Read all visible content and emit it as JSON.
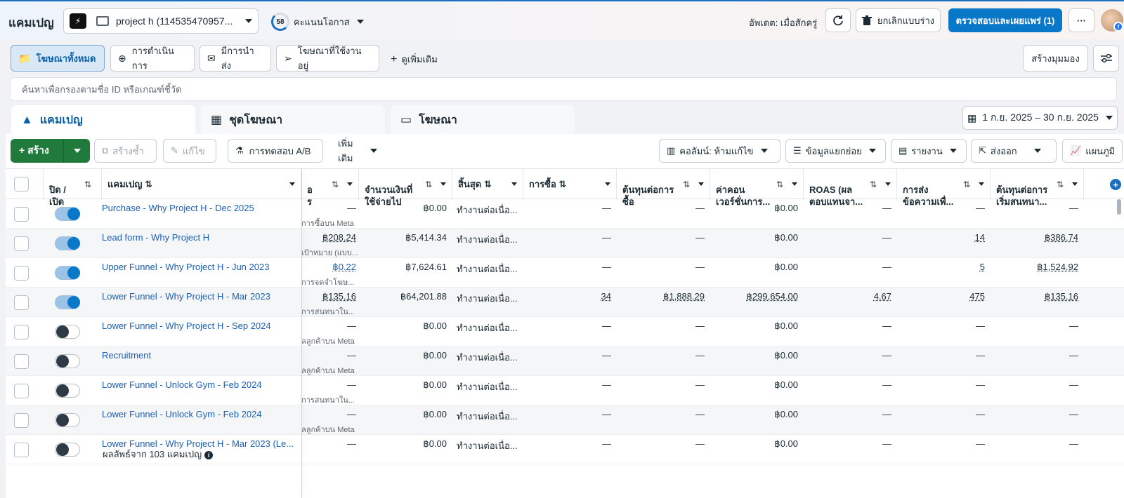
{
  "header": {
    "title": "แคมเปญ",
    "account_name": "project h (114535470957...",
    "opportunity_score": "58",
    "opportunity_label": "คะแนนโอกาส",
    "updated": "อัพเดต: เมื่อสักครู่",
    "discard_label": "ยกเลิกแบบร่าง",
    "review_label": "ตรวจสอบและเผยแพร่ (1)",
    "more_label": "···"
  },
  "filters": {
    "all_ads": "โฆษณาทั้งหมด",
    "in_progress": "การดำเนินการ",
    "delivering": "มีการนำส่ง",
    "active_ads": "โฆษณาที่ใช้งานอยู่",
    "see_more": "ดูเพิ่มเติม",
    "create_view": "สร้างมุมมอง"
  },
  "search": {
    "placeholder": "ค้นหาเพื่อกรองตามชื่อ ID หรือเกณฑ์ชี้วัด"
  },
  "level_tabs": {
    "campaigns": "แคมเปญ",
    "ad_sets": "ชุดโฆษณา",
    "ads": "โฆษณา"
  },
  "date_range": "1 ก.ย. 2025 – 30 ก.ย. 2025",
  "toolbar": {
    "create": "สร้าง",
    "duplicate": "สร้างซ้ำ",
    "edit": "แก้ไข",
    "ab_test": "การทดสอบ A/B",
    "more": "เพิ่มเติม",
    "columns": "คอลัมน์: ห้ามแก้ไข",
    "breakdown": "ข้อมูลแยกย่อย",
    "reports": "รายงาน",
    "export": "ส่งออก",
    "charts": "แผนภูมิ"
  },
  "columns": {
    "toggle": "ปิด /\nเปิด",
    "campaign": "แคมเปญ",
    "cpr": "อ\nร",
    "spent": "จำนวนเงินที่\nใช้จ่ายไป",
    "ends": "สิ้นสุด",
    "purchases": "การซื้อ",
    "cost_per_purchase": "ต้นทุนต่อการ\nซื้อ",
    "conv_value": "ค่าคอน\nเวอร์ชั่นการ...",
    "roas": "ROAS (ผล\nตอบแทนจา...",
    "messaging": "การส่ง\nข้อความเพื่...",
    "cost_per_conv_start": "ต้นทุนต่อการ\nเริ่มสนทนา..."
  },
  "rows": [
    {
      "name": "Purchase - Why Project H - Dec 2025",
      "on": true,
      "cpr": "—",
      "cpr_sub": "การซื้อบน Meta",
      "spent": "฿0.00",
      "ends": "ทำงานต่อเนื่อ...",
      "purchases": "—",
      "cpp": "—",
      "conv_value": "฿0.00",
      "roas": "—",
      "messaging": "—",
      "cost_conv": "—"
    },
    {
      "name": "Lead form - Why Project H",
      "on": true,
      "cpr": "฿208.24",
      "cpr_sub": "เป้าหมาย (แบบ...",
      "spent": "฿5,414.34",
      "ends": "ทำงานต่อเนื่อ...",
      "purchases": "—",
      "cpp": "—",
      "conv_value": "฿0.00",
      "roas": "—",
      "messaging": "14",
      "cost_conv": "฿386.74"
    },
    {
      "name": "Upper Funnel - Why Project H - Jun 2023",
      "on": true,
      "cpr": "฿0.22",
      "cpr_sub": "การจดจำโฆษ...",
      "spent": "฿7,624.61",
      "ends": "ทำงานต่อเนื่อ...",
      "purchases": "—",
      "cpp": "—",
      "conv_value": "฿0.00",
      "roas": "—",
      "messaging": "5",
      "cost_conv": "฿1,524.92"
    },
    {
      "name": "Lower Funnel - Why Project H - Mar 2023",
      "on": true,
      "cpr": "฿135.16",
      "cpr_sub": "การสนทนาใน...",
      "spent": "฿64,201.88",
      "ends": "ทำงานต่อเนื่อ...",
      "purchases": "34",
      "cpp": "฿1,888.29",
      "conv_value": "฿299,654.00",
      "roas": "4.67",
      "messaging": "475",
      "cost_conv": "฿135.16"
    },
    {
      "name": "Lower Funnel - Why Project H - Sep 2024",
      "on": false,
      "cpr": "—",
      "cpr_sub": "ลลูกค้าบน Meta",
      "spent": "฿0.00",
      "ends": "ทำงานต่อเนื่อ...",
      "purchases": "—",
      "cpp": "—",
      "conv_value": "฿0.00",
      "roas": "—",
      "messaging": "—",
      "cost_conv": "—"
    },
    {
      "name": "Recruitment",
      "on": false,
      "cpr": "—",
      "cpr_sub": "ลลูกค้าบน Meta",
      "spent": "฿0.00",
      "ends": "ทำงานต่อเนื่อ...",
      "purchases": "—",
      "cpp": "—",
      "conv_value": "฿0.00",
      "roas": "—",
      "messaging": "—",
      "cost_conv": "—"
    },
    {
      "name": "Lower Funnel - Unlock Gym - Feb 2024",
      "on": false,
      "cpr": "—",
      "cpr_sub": "การสนทนาใน...",
      "spent": "฿0.00",
      "ends": "ทำงานต่อเนื่อ...",
      "purchases": "—",
      "cpp": "—",
      "conv_value": "฿0.00",
      "roas": "—",
      "messaging": "—",
      "cost_conv": "—"
    },
    {
      "name": "Lower Funnel - Unlock Gym - Feb 2024",
      "on": false,
      "cpr": "—",
      "cpr_sub": "ลลูกค้าบน Meta",
      "spent": "฿0.00",
      "ends": "ทำงานต่อเนื่อ...",
      "purchases": "—",
      "cpp": "—",
      "conv_value": "฿0.00",
      "roas": "—",
      "messaging": "—",
      "cost_conv": "—"
    },
    {
      "name": "Lower Funnel - Why Project H - Mar 2023 (Le...",
      "on": false,
      "cpr": "—",
      "cpr_sub": "",
      "spent": "฿0.00",
      "ends": "ทำงานต่อเนื่อ...",
      "purchases": "—",
      "cpp": "—",
      "conv_value": "฿0.00",
      "roas": "—",
      "messaging": "—",
      "cost_conv": "—"
    }
  ],
  "footer": {
    "results": "ผลลัพธ์จาก 103 แคมเปญ"
  }
}
